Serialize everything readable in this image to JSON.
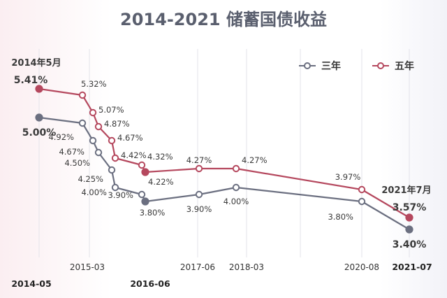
{
  "chart_data": {
    "type": "line",
    "title": "2014-2021 储蓄国债收益",
    "xlabel": "",
    "ylabel": "",
    "x_ticks": [
      {
        "label": "2014-05",
        "bold": true
      },
      {
        "label": "2015-03",
        "bold": false
      },
      {
        "label": "2016-06",
        "bold": true
      },
      {
        "label": "2017-06",
        "bold": false
      },
      {
        "label": "2018-03",
        "bold": false
      },
      {
        "label": "2020-08",
        "bold": false
      },
      {
        "label": "2021-07",
        "bold": true
      }
    ],
    "grid": "vertical",
    "legend_position": "top-right",
    "series": [
      {
        "name": "三年",
        "color": "#6b6f80",
        "points": [
          {
            "date": "2014-05",
            "value": 5.0,
            "label": "5.00%"
          },
          {
            "date": "2015-03",
            "value": 4.92,
            "label": "4.92%"
          },
          {
            "date": "2015-05",
            "value": 4.67,
            "label": "4.67%"
          },
          {
            "date": "2015-06",
            "value": 4.5,
            "label": "4.50%"
          },
          {
            "date": "2015-08",
            "value": 4.25,
            "label": "4.25%"
          },
          {
            "date": "2015-09",
            "value": 4.0,
            "label": "4.00%"
          },
          {
            "date": "2016-03",
            "value": 3.9,
            "label": "3.90%"
          },
          {
            "date": "2016-06",
            "value": 3.8,
            "label": "3.80%"
          },
          {
            "date": "2017-06",
            "value": 3.9,
            "label": "3.90%"
          },
          {
            "date": "2018-03",
            "value": 4.0,
            "label": "4.00%"
          },
          {
            "date": "2020-08",
            "value": 3.8,
            "label": "3.80%"
          },
          {
            "date": "2021-07",
            "value": 3.4,
            "label": "3.40%"
          }
        ]
      },
      {
        "name": "五年",
        "color": "#b5485e",
        "points": [
          {
            "date": "2014-05",
            "value": 5.41,
            "label": "5.41%",
            "note": "2014年5月"
          },
          {
            "date": "2015-03",
            "value": 5.32,
            "label": "5.32%"
          },
          {
            "date": "2015-05",
            "value": 5.07,
            "label": "5.07%"
          },
          {
            "date": "2015-06",
            "value": 4.87,
            "label": "4.87%"
          },
          {
            "date": "2015-08",
            "value": 4.67,
            "label": "4.67%"
          },
          {
            "date": "2015-09",
            "value": 4.42,
            "label": "4.42%"
          },
          {
            "date": "2016-03",
            "value": 4.32,
            "label": "4.32%"
          },
          {
            "date": "2016-06",
            "value": 4.22,
            "label": "4.22%"
          },
          {
            "date": "2017-06",
            "value": 4.27,
            "label": "4.27%"
          },
          {
            "date": "2018-03",
            "value": 4.27,
            "label": "4.27%"
          },
          {
            "date": "2020-08",
            "value": 3.97,
            "label": "3.97%"
          },
          {
            "date": "2021-07",
            "value": 3.57,
            "label": "3.57%",
            "note": "2021年7月"
          }
        ]
      }
    ]
  }
}
